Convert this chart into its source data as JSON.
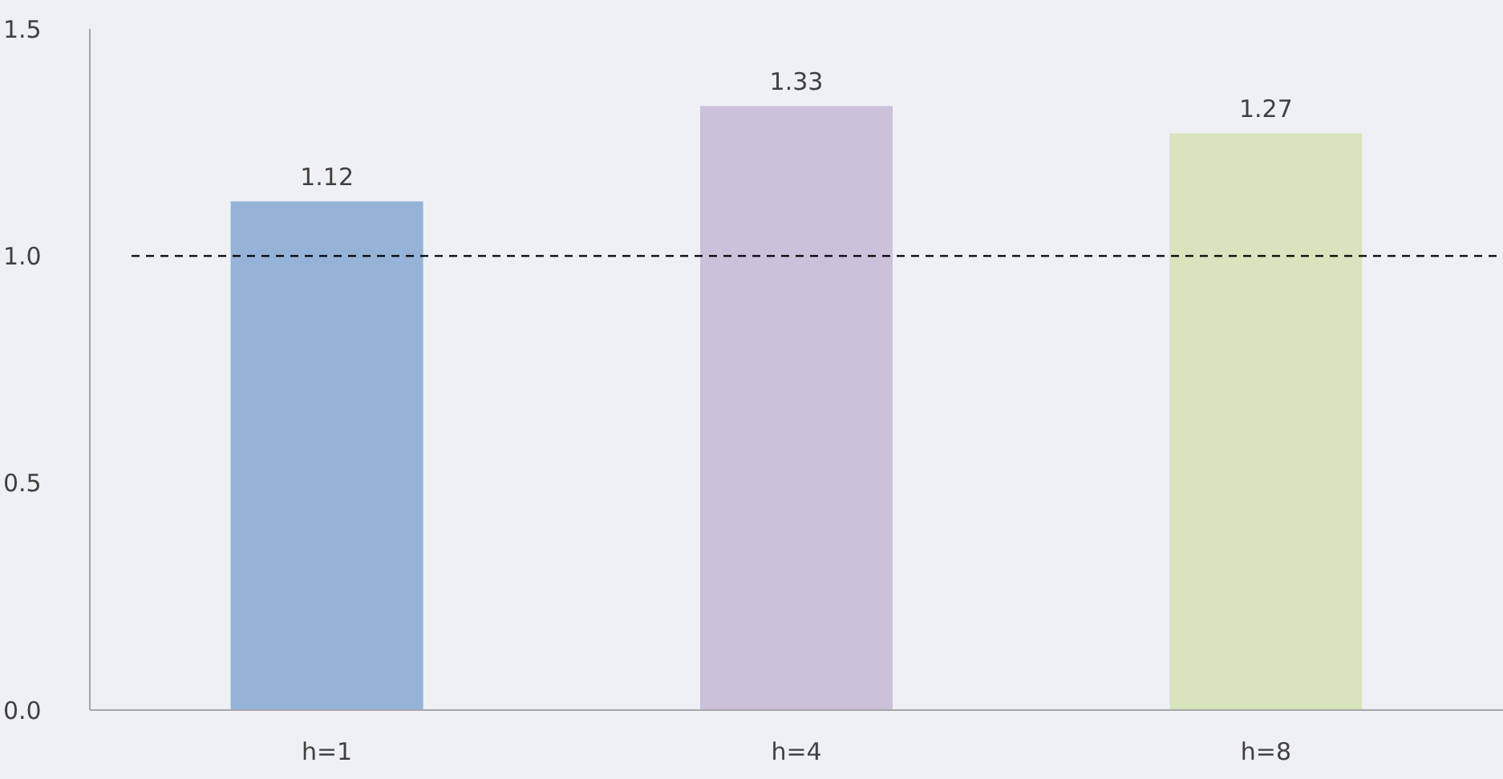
{
  "chart_data": {
    "type": "bar",
    "categories": [
      "h=1",
      "h=4",
      "h=8"
    ],
    "values": [
      1.12,
      1.33,
      1.27
    ],
    "colors": [
      "#95b3d7",
      "#ccc1da",
      "#d7e4bd"
    ],
    "ylim": [
      0,
      1.5
    ],
    "yticks": [
      {
        "value": 0,
        "label": "0.0"
      },
      {
        "value": 0.5,
        "label": "0.5"
      },
      {
        "value": 1,
        "label": "1.0"
      },
      {
        "value": 1.5,
        "label": "1.5"
      }
    ],
    "data_labels": true,
    "ref_lines": [
      {
        "axis": "y",
        "value": 1,
        "color": "#000000",
        "line_style": "dashed"
      }
    ]
  }
}
